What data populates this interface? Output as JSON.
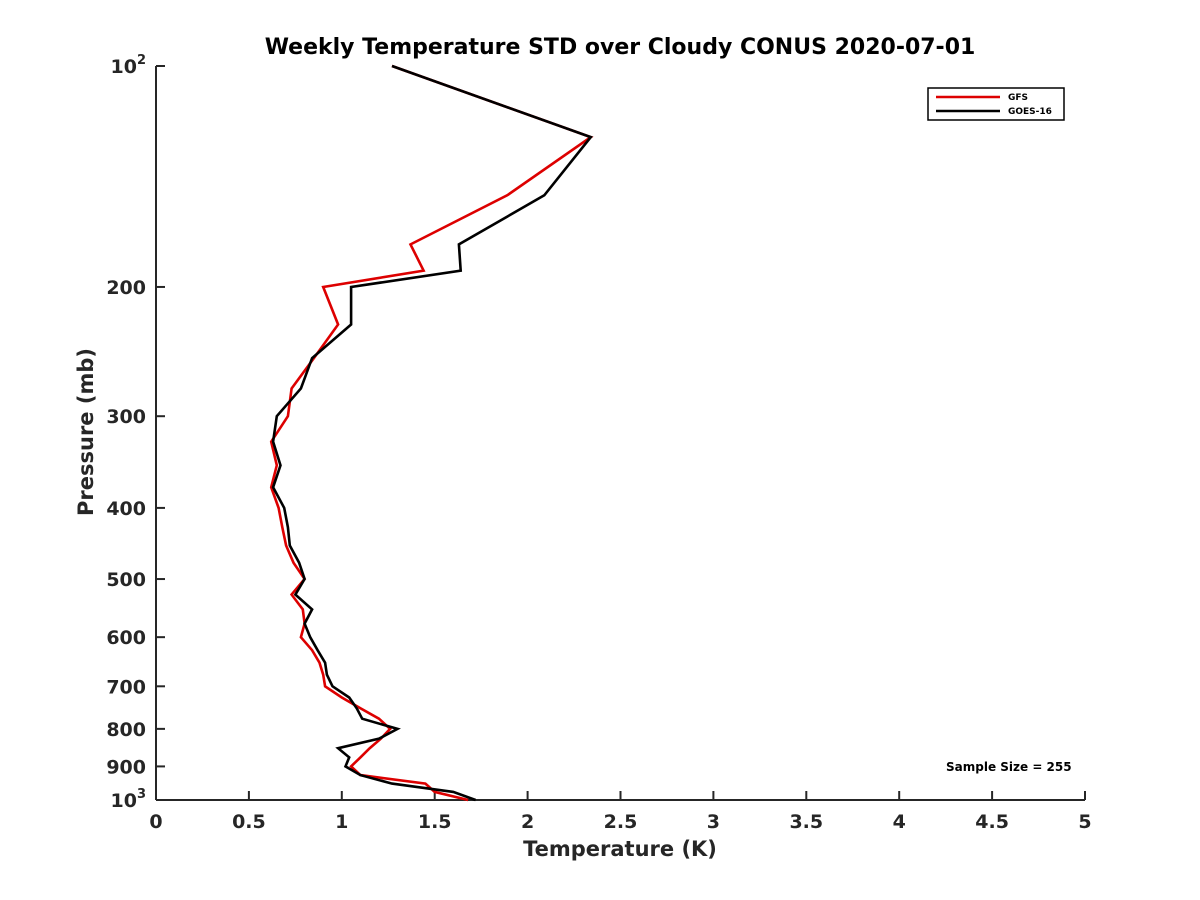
{
  "chart_data": {
    "type": "line",
    "title": "Weekly Temperature STD over Cloudy CONUS 2020-07-01",
    "xlabel": "Temperature (K)",
    "ylabel": "Pressure (mb)",
    "xlim": [
      0,
      5
    ],
    "ylim": [
      100,
      1000
    ],
    "y_scale": "log",
    "y_reversed": true,
    "x_ticks": [
      0,
      0.5,
      1,
      1.5,
      2,
      2.5,
      3,
      3.5,
      4,
      4.5,
      5
    ],
    "x_tick_labels": [
      "0",
      "0.5",
      "1",
      "1.5",
      "2",
      "2.5",
      "3",
      "3.5",
      "4",
      "4.5",
      "5"
    ],
    "y_ticks": [
      100,
      200,
      300,
      400,
      500,
      600,
      700,
      800,
      900,
      1000
    ],
    "y_tick_labels": [
      {
        "base": "10",
        "exp": "2"
      },
      {
        "base": "200",
        "exp": ""
      },
      {
        "base": "300",
        "exp": ""
      },
      {
        "base": "400",
        "exp": ""
      },
      {
        "base": "500",
        "exp": ""
      },
      {
        "base": "600",
        "exp": ""
      },
      {
        "base": "700",
        "exp": ""
      },
      {
        "base": "800",
        "exp": ""
      },
      {
        "base": "900",
        "exp": ""
      },
      {
        "base": "10",
        "exp": "3"
      }
    ],
    "grid": false,
    "legend_position": "top-right",
    "annotation": "Sample Size = 255",
    "series": [
      {
        "name": "GFS",
        "color": "#dd0000",
        "points": [
          [
            1.27,
            100
          ],
          [
            2.34,
            125
          ],
          [
            1.89,
            150
          ],
          [
            1.37,
            175
          ],
          [
            1.44,
            190
          ],
          [
            0.9,
            200
          ],
          [
            0.98,
            225
          ],
          [
            0.85,
            250
          ],
          [
            0.73,
            275
          ],
          [
            0.71,
            300
          ],
          [
            0.62,
            325
          ],
          [
            0.65,
            350
          ],
          [
            0.62,
            375
          ],
          [
            0.66,
            400
          ],
          [
            0.68,
            425
          ],
          [
            0.7,
            450
          ],
          [
            0.74,
            475
          ],
          [
            0.8,
            500
          ],
          [
            0.73,
            525
          ],
          [
            0.79,
            550
          ],
          [
            0.8,
            575
          ],
          [
            0.78,
            600
          ],
          [
            0.84,
            625
          ],
          [
            0.88,
            650
          ],
          [
            0.9,
            675
          ],
          [
            0.91,
            700
          ],
          [
            1.0,
            725
          ],
          [
            1.1,
            750
          ],
          [
            1.2,
            775
          ],
          [
            1.26,
            800
          ],
          [
            1.21,
            825
          ],
          [
            1.15,
            850
          ],
          [
            1.1,
            875
          ],
          [
            1.05,
            900
          ],
          [
            1.1,
            925
          ],
          [
            1.45,
            950
          ],
          [
            1.5,
            975
          ],
          [
            1.68,
            1000
          ]
        ]
      },
      {
        "name": "GOES-16",
        "color": "#000000",
        "points": [
          [
            1.27,
            100
          ],
          [
            2.34,
            125
          ],
          [
            2.09,
            150
          ],
          [
            1.63,
            175
          ],
          [
            1.64,
            190
          ],
          [
            1.05,
            200
          ],
          [
            1.05,
            225
          ],
          [
            0.84,
            250
          ],
          [
            0.78,
            275
          ],
          [
            0.65,
            300
          ],
          [
            0.63,
            325
          ],
          [
            0.67,
            350
          ],
          [
            0.63,
            375
          ],
          [
            0.69,
            400
          ],
          [
            0.71,
            425
          ],
          [
            0.72,
            450
          ],
          [
            0.77,
            475
          ],
          [
            0.8,
            500
          ],
          [
            0.75,
            525
          ],
          [
            0.84,
            550
          ],
          [
            0.8,
            575
          ],
          [
            0.83,
            600
          ],
          [
            0.87,
            625
          ],
          [
            0.91,
            650
          ],
          [
            0.92,
            675
          ],
          [
            0.95,
            700
          ],
          [
            1.04,
            725
          ],
          [
            1.08,
            750
          ],
          [
            1.11,
            775
          ],
          [
            1.3,
            800
          ],
          [
            1.2,
            825
          ],
          [
            0.98,
            850
          ],
          [
            1.04,
            875
          ],
          [
            1.02,
            900
          ],
          [
            1.1,
            925
          ],
          [
            1.27,
            950
          ],
          [
            1.6,
            975
          ],
          [
            1.72,
            1000
          ]
        ]
      }
    ]
  }
}
